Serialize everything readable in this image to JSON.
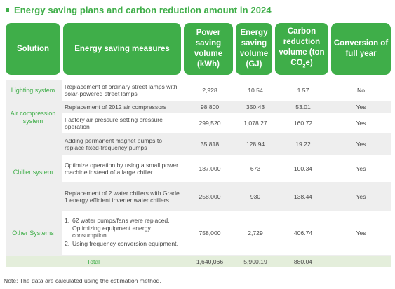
{
  "title": "Energy saving plans and carbon reduction amount in 2024",
  "colors": {
    "accent": "#3fae49",
    "row_gray": "#eeeeee",
    "total_bg": "#e4eedb"
  },
  "headers": {
    "solution": "Solution",
    "measures": "Energy saving measures",
    "power_1": "Power",
    "power_2": "saving",
    "power_3": "volume",
    "power_4": "(kWh)",
    "energy_1": "Energy",
    "energy_2": "saving",
    "energy_3": "volume",
    "energy_4": "(GJ)",
    "carbon_1": "Carbon",
    "carbon_2": "reduction",
    "carbon_3": "volume (ton",
    "carbon_4a": "CO",
    "carbon_4b": "2",
    "carbon_4c": "e)",
    "conv_1": "Conversion of",
    "conv_2": "full year"
  },
  "solutions": {
    "lighting": "Lighting system",
    "air": "Air compression system",
    "chiller": "Chiller system",
    "other": "Other Systems"
  },
  "rows": [
    {
      "measure": "Replacement of ordinary street lamps with solar-powered street lamps",
      "kwh": "2,928",
      "gj": "10.54",
      "co2": "1.57",
      "full_year": "No"
    },
    {
      "measure": "Replacement of 2012 air compressors",
      "kwh": "98,800",
      "gj": "350.43",
      "co2": "53.01",
      "full_year": "Yes"
    },
    {
      "measure": "Factory air pressure setting pressure operation",
      "kwh": "299,520",
      "gj": "1,078.27",
      "co2": "160.72",
      "full_year": "Yes"
    },
    {
      "measure": "Adding permanent magnet pumps to replace fixed-frequency pumps",
      "kwh": "35,818",
      "gj": "128.94",
      "co2": "19.22",
      "full_year": "Yes"
    },
    {
      "measure": "Optimize operation by using a small power machine instead of a large chiller",
      "kwh": "187,000",
      "gj": "673",
      "co2": "100.34",
      "full_year": "Yes"
    },
    {
      "measure": "Replacement of 2 water chillers with Grade 1 energy efficient inverter water chillers",
      "kwh": "258,000",
      "gj": "930",
      "co2": "138.44",
      "full_year": "Yes"
    },
    {
      "measure_items": [
        {
          "num": "1.",
          "text": "62 water pumps/fans were replaced. Optimizing equipment energy consumption."
        },
        {
          "num": "2.",
          "text": "Using frequency conversion equipment."
        }
      ],
      "kwh": "758,000",
      "gj": "2,729",
      "co2": "406.74",
      "full_year": "Yes"
    }
  ],
  "total": {
    "label": "Total",
    "kwh": "1,640,066",
    "gj": "5,900.19",
    "co2": "880.04"
  },
  "note": "Note: The data are calculated using the estimation method."
}
